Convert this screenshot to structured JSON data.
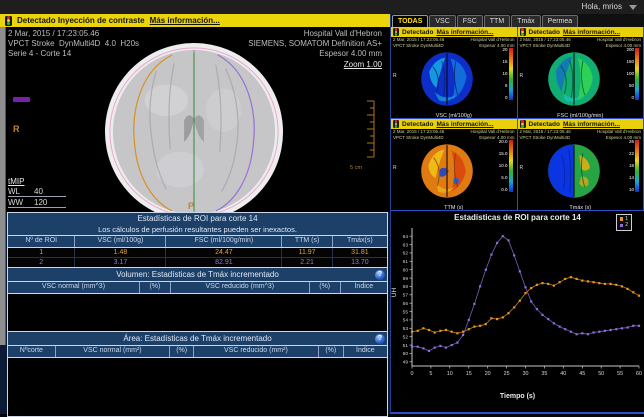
{
  "topbar": {
    "greeting": "Hola, mrios"
  },
  "left": {
    "alert": {
      "label": "Detectado Inyección de contraste",
      "more": "Más información..."
    },
    "overlay": {
      "datetime": "2 Mar, 2015 / 17:23:05.46",
      "protocol": "VPCT Stroke  DynMulti4D  4.0  H20s",
      "series": "Serie 4 - Corte 14",
      "hospital": "Hospital Vall d'Hebron",
      "scanner": "SIEMENS, SOMATOM Definition AS+",
      "thickness": "Espesor 4.00 mm",
      "zoom_link": "Zoom 1.00",
      "marker_r": "R",
      "marker_p": "P",
      "mode_link": "tMIP",
      "wl": "WL",
      "wl_val": "40",
      "ww": "WW",
      "ww_val": "120",
      "ruler_label": "5 cm"
    },
    "roi_table": {
      "title": "Estadísticas de ROI para corte 14",
      "subtitle": "Los cálculos de perfusión resultantes pueden ser inexactos.",
      "headers": [
        "Nº de ROI",
        "VSC (ml/100g)",
        "FSC (ml/100g/min)",
        "TTM (s)",
        "Tmáx(s)"
      ],
      "rows": [
        {
          "color": "#e8a030",
          "cells": [
            "1",
            "1.48",
            "24.47",
            "11.97",
            "31.81"
          ]
        },
        {
          "color": "#9a78d8",
          "cells": [
            "2",
            "3.17",
            "82.91",
            "2.21",
            "13.70"
          ]
        }
      ]
    },
    "volume_table": {
      "title": "Volumen: Estadísticas de Tmáx incrementado",
      "info_glyph": "?",
      "headers": [
        "VSC normal (mm^3)",
        "(%)",
        "VSC reducido (mm^3)",
        "(%)",
        "Índice"
      ]
    },
    "area_table": {
      "title": "Área: Estadísticas de Tmáx incrementado",
      "info_glyph": "?",
      "headers": [
        "Nºcorte",
        "VSC normal (mm²)",
        "(%)",
        "VSC reducido (mm²)",
        "(%)",
        "Índice"
      ]
    }
  },
  "right": {
    "tabs": [
      "TODAS",
      "VSC",
      "FSC",
      "TTM",
      "Tmáx",
      "Permea"
    ],
    "active_tab": "TODAS",
    "quadrants": [
      {
        "alert": "Detectado",
        "more": "Más información...",
        "datetime": "2 Mar, 2015 / 17:23:05.46",
        "hospital": "Hospital Vall d'Hebron",
        "protocol": "VPCT Stroke  DynMulti4D",
        "thickness": "Espesor 4.00 mm",
        "marker_r": "R",
        "label": "VSC (ml/100g)",
        "scale_labels": [
          "20",
          "15",
          "10",
          "5",
          "0"
        ],
        "palette": "vsc"
      },
      {
        "alert": "Detectado",
        "more": "Más información...",
        "datetime": "2 Mar, 2015 / 17:23:05.46",
        "hospital": "Hospital Vall d'Hebron",
        "protocol": "VPCT Stroke  DynMulti4D",
        "thickness": "Espesor 4.00 mm",
        "marker_r": "R",
        "label": "FSC (ml/100g/min)",
        "scale_labels": [
          "200",
          "150",
          "100",
          "50",
          "0"
        ],
        "palette": "fsc"
      },
      {
        "alert": "Detectado",
        "more": "Más información...",
        "datetime": "2 Mar, 2015 / 17:23:05.46",
        "hospital": "Hospital Vall d'Hebron",
        "protocol": "VPCT Stroke  DynMulti4D",
        "thickness": "Espesor 4.00 mm",
        "marker_r": "R",
        "label": "TTM (s)",
        "scale_labels": [
          "20.0",
          "15.0",
          "10.0",
          "5.0",
          "0.0"
        ],
        "palette": "ttm"
      },
      {
        "alert": "Detectado",
        "more": "Más información...",
        "datetime": "2 Mar, 2015 / 17:23:05.46",
        "hospital": "Hospital Vall d'Hebron",
        "protocol": "VPCT Stroke  DynMulti4D",
        "thickness": "Espesor 4.00 mm",
        "marker_r": "R",
        "label": "Tmáx (s)",
        "scale_labels": [
          "26",
          "22",
          "18",
          "14",
          "10"
        ],
        "palette": "tmax"
      }
    ]
  },
  "chart_data": {
    "type": "line",
    "title": "Estadísticas de ROI para corte 14",
    "xlabel": "Tiempo (s)",
    "ylabel": "UH",
    "xlim": [
      0,
      60
    ],
    "ylim": [
      48.5,
      64.5
    ],
    "xticks": [
      0,
      5,
      10,
      15,
      20,
      25,
      30,
      35,
      40,
      45,
      50,
      55,
      60
    ],
    "yticks": [
      49,
      50,
      51,
      52,
      53,
      54,
      55,
      56,
      57,
      58,
      59,
      60,
      61,
      62,
      63,
      64
    ],
    "grid": false,
    "legend_position": "top-right",
    "x": [
      0,
      1.5,
      3,
      4.5,
      6,
      7.5,
      9,
      10.5,
      12,
      13.5,
      15,
      16.5,
      18,
      19.5,
      21,
      22.5,
      24,
      25.5,
      27,
      28.5,
      30,
      31.5,
      33,
      34.5,
      36,
      37.5,
      39,
      40.5,
      42,
      43.5,
      45,
      46.5,
      48,
      49.5,
      51,
      52.5,
      54,
      55.5,
      57,
      58.5,
      60
    ],
    "series": [
      {
        "name": "1",
        "color": "#e8971e",
        "values": [
          52.6,
          52.7,
          53.0,
          52.8,
          52.5,
          52.7,
          52.8,
          52.6,
          52.4,
          52.6,
          52.9,
          53.2,
          53.3,
          53.5,
          54.2,
          54.1,
          54.3,
          54.8,
          55.5,
          56.3,
          57.2,
          57.8,
          58.2,
          58.4,
          58.3,
          58.1,
          58.5,
          58.9,
          59.1,
          58.9,
          58.7,
          58.6,
          58.5,
          58.4,
          58.3,
          58.3,
          58.2,
          58.0,
          57.7,
          57.3,
          56.9
        ]
      },
      {
        "name": "2",
        "color": "#8f6fd8",
        "values": [
          50.8,
          50.8,
          50.6,
          50.3,
          50.7,
          50.9,
          50.7,
          51.0,
          51.3,
          52.2,
          54.0,
          55.9,
          58.0,
          60.0,
          61.8,
          63.2,
          64.0,
          63.5,
          61.7,
          59.8,
          57.9,
          56.2,
          55.3,
          54.6,
          54.1,
          53.6,
          53.2,
          52.9,
          52.6,
          52.3,
          52.4,
          52.3,
          52.5,
          52.6,
          52.7,
          52.8,
          52.9,
          53.0,
          53.1,
          53.3,
          53.3
        ]
      }
    ]
  }
}
